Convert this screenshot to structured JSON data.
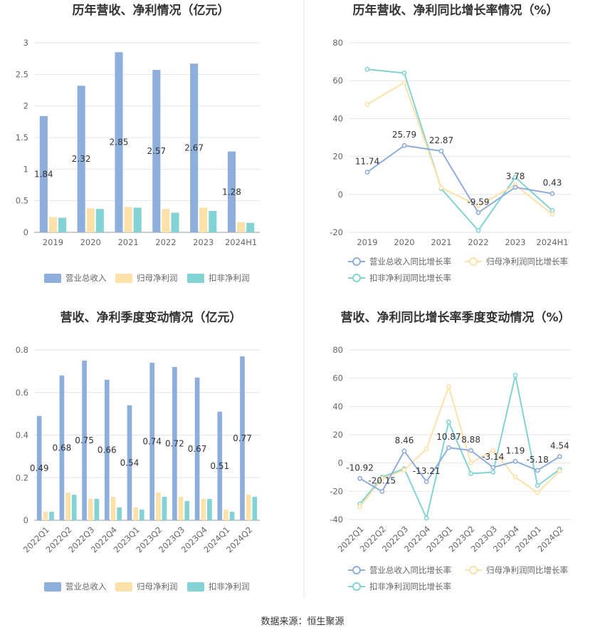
{
  "colors": {
    "revenue": "#8eaedb",
    "net_profit": "#fce1a8",
    "deducted_profit": "#84d3d4",
    "grid": "#e6e6e6",
    "divider": "#e4e4e4"
  },
  "source_text": "数据来源：恒生聚源",
  "chart_data": [
    {
      "id": "annual_bar",
      "type": "bar",
      "title": "历年营收、净利情况（亿元）",
      "categories": [
        "2019",
        "2020",
        "2021",
        "2022",
        "2023",
        "2024H1"
      ],
      "ylim": [
        0,
        3
      ],
      "yticks": [
        0,
        0.5,
        1,
        1.5,
        2,
        2.5,
        3
      ],
      "ytick_labels": [
        "0",
        "0.5",
        "1",
        "1.5",
        "2",
        "2.5",
        "3"
      ],
      "series": [
        {
          "name": "营业总收入",
          "color_key": "revenue",
          "values": [
            1.84,
            2.32,
            2.85,
            2.57,
            2.67,
            1.28
          ],
          "labels": [
            "1.84",
            "2.32",
            "2.85",
            "2.57",
            "2.67",
            "1.28"
          ]
        },
        {
          "name": "归母净利润",
          "color_key": "net_profit",
          "values": [
            0.24,
            0.38,
            0.4,
            0.37,
            0.39,
            0.16
          ]
        },
        {
          "name": "扣非净利润",
          "color_key": "deducted_profit",
          "values": [
            0.23,
            0.37,
            0.39,
            0.31,
            0.34,
            0.15
          ]
        }
      ]
    },
    {
      "id": "annual_line",
      "type": "line",
      "title": "历年营收、净利同比增长率情况（%）",
      "categories": [
        "2019",
        "2020",
        "2021",
        "2022",
        "2023",
        "2024H1"
      ],
      "ylim": [
        -20,
        80
      ],
      "yticks": [
        -20,
        0,
        20,
        40,
        60,
        80
      ],
      "ytick_labels": [
        "-20",
        "0",
        "20",
        "40",
        "60",
        "80"
      ],
      "series": [
        {
          "name": "营业总收入同比增长率",
          "color_key": "revenue",
          "values": [
            11.74,
            25.79,
            22.87,
            -9.59,
            3.78,
            0.43
          ],
          "labels": [
            "11.74",
            "25.79",
            "22.87",
            "-9.59",
            "3.78",
            "0.43"
          ]
        },
        {
          "name": "归母净利润同比增长率",
          "color_key": "net_profit",
          "values": [
            47.5,
            59.0,
            3.5,
            -6.0,
            5.0,
            -10.5
          ]
        },
        {
          "name": "扣非净利润同比增长率",
          "color_key": "deducted_profit",
          "values": [
            66.0,
            64.0,
            3.0,
            -19.0,
            9.0,
            -8.5
          ]
        }
      ]
    },
    {
      "id": "quarter_bar",
      "type": "bar",
      "title": "营收、净利季度变动情况（亿元）",
      "categories": [
        "2022Q1",
        "2022Q2",
        "2022Q3",
        "2022Q4",
        "2023Q1",
        "2023Q2",
        "2023Q3",
        "2023Q4",
        "2024Q1",
        "2024Q2"
      ],
      "ylim": [
        0,
        0.8
      ],
      "yticks": [
        0,
        0.2,
        0.4,
        0.6,
        0.8
      ],
      "ytick_labels": [
        "0",
        "0.2",
        "0.4",
        "0.6",
        "0.8"
      ],
      "series": [
        {
          "name": "营业总收入",
          "color_key": "revenue",
          "values": [
            0.49,
            0.68,
            0.75,
            0.66,
            0.54,
            0.74,
            0.72,
            0.67,
            0.51,
            0.77
          ],
          "labels": [
            "0.49",
            "0.68",
            "0.75",
            "0.66",
            "0.54",
            "0.74",
            "0.72",
            "0.67",
            "0.51",
            "0.77"
          ]
        },
        {
          "name": "归母净利润",
          "color_key": "net_profit",
          "values": [
            0.04,
            0.13,
            0.1,
            0.11,
            0.06,
            0.13,
            0.11,
            0.1,
            0.05,
            0.12
          ]
        },
        {
          "name": "扣非净利润",
          "color_key": "deducted_profit",
          "values": [
            0.04,
            0.12,
            0.1,
            0.06,
            0.05,
            0.11,
            0.09,
            0.1,
            0.04,
            0.11
          ]
        }
      ]
    },
    {
      "id": "quarter_line",
      "type": "line",
      "title": "营收、净利同比增长率季度变动情况（%）",
      "categories": [
        "2022Q1",
        "2022Q2",
        "2022Q3",
        "2022Q4",
        "2023Q1",
        "2023Q2",
        "2023Q3",
        "2023Q4",
        "2024Q1",
        "2024Q2"
      ],
      "ylim": [
        -40,
        80
      ],
      "yticks": [
        -40,
        -20,
        0,
        20,
        40,
        60,
        80
      ],
      "ytick_labels": [
        "-40",
        "-20",
        "0",
        "20",
        "40",
        "60",
        "80"
      ],
      "series": [
        {
          "name": "营业总收入同比增长率",
          "color_key": "revenue",
          "values": [
            -10.92,
            -20.15,
            8.46,
            -13.21,
            10.87,
            8.88,
            -3.14,
            1.19,
            -5.18,
            4.54
          ],
          "labels": [
            "-10.92",
            "-20.15",
            "8.46",
            "-13.21",
            "10.87",
            "8.88",
            "-3.14",
            "1.19",
            "-5.18",
            "4.54"
          ]
        },
        {
          "name": "归母净利润同比增长率",
          "color_key": "net_profit",
          "values": [
            -31.0,
            -11.0,
            -5.0,
            10.0,
            54.0,
            0.0,
            9.0,
            -10.0,
            -21.0,
            -5.5
          ]
        },
        {
          "name": "扣非净利润同比增长率",
          "color_key": "deducted_profit",
          "values": [
            -29.0,
            -10.0,
            -4.0,
            -39.0,
            29.0,
            -7.5,
            -6.5,
            62.0,
            -16.0,
            -4.5
          ]
        }
      ]
    }
  ]
}
